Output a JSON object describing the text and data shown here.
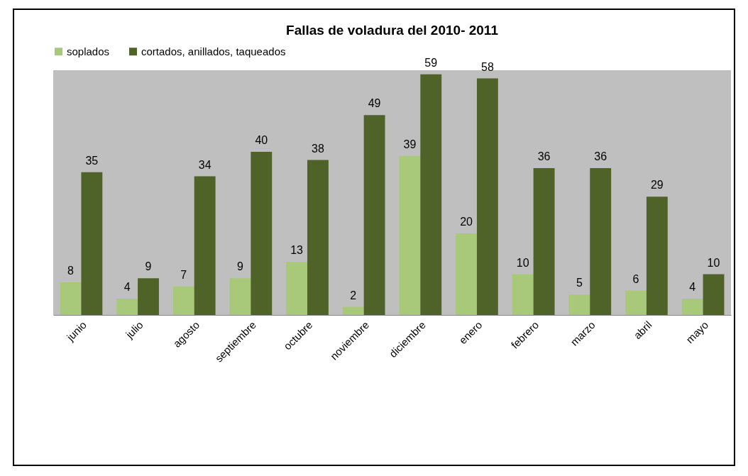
{
  "chart_data": {
    "type": "bar",
    "title": "Fallas de voladura del 2010- 2011",
    "categories": [
      "junio",
      "julio",
      "agosto",
      "septiembre",
      "octubre",
      "noviembre",
      "diciembre",
      "enero",
      "febrero",
      "marzo",
      "abril",
      "mayo"
    ],
    "series": [
      {
        "name": "soplados",
        "color": "#a9c97a",
        "values": [
          8,
          4,
          7,
          9,
          13,
          2,
          39,
          20,
          10,
          5,
          6,
          4
        ]
      },
      {
        "name": "cortados, anillados, taqueados",
        "color": "#4f6228",
        "values": [
          35,
          9,
          34,
          40,
          38,
          49,
          59,
          58,
          36,
          36,
          29,
          10
        ]
      }
    ],
    "data_labels": true,
    "legend": "top",
    "grid": false
  }
}
